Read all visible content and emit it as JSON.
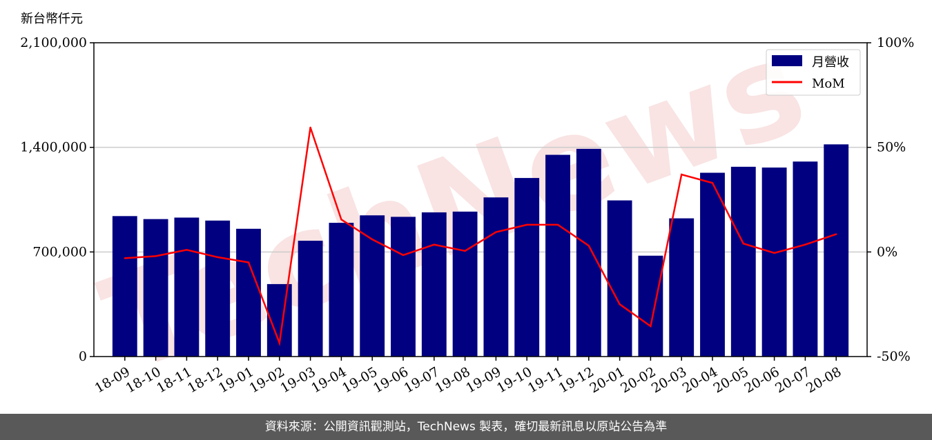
{
  "chart_data": {
    "type": "bar",
    "unit_label": "新台幣仟元",
    "categories": [
      "18-09",
      "18-10",
      "18-11",
      "18-12",
      "19-01",
      "19-02",
      "19-03",
      "19-04",
      "19-05",
      "19-06",
      "19-07",
      "19-08",
      "19-09",
      "19-10",
      "19-11",
      "19-12",
      "20-01",
      "20-02",
      "20-03",
      "20-04",
      "20-05",
      "20-06",
      "20-07",
      "20-08"
    ],
    "series": [
      {
        "name": "月營收",
        "axis": "left",
        "color": "#000080",
        "values": [
          940000,
          920000,
          930000,
          910000,
          855000,
          485000,
          775000,
          895000,
          945000,
          935000,
          965000,
          970000,
          1065000,
          1195000,
          1350000,
          1390000,
          1045000,
          675000,
          925000,
          1230000,
          1270000,
          1265000,
          1305000,
          1420000
        ]
      },
      {
        "name": "MoM",
        "axis": "right",
        "color": "#ff0000",
        "values": [
          -3,
          -2,
          1,
          -2.5,
          -5,
          -43.5,
          59.5,
          15.5,
          6,
          -1.5,
          3.5,
          0.5,
          9.5,
          13,
          13,
          3,
          -25,
          -35.5,
          37,
          33,
          4,
          -0.5,
          3.5,
          8.5
        ]
      }
    ],
    "y_left": {
      "min": 0,
      "max": 2100000,
      "ticks": [
        "0",
        "700,000",
        "1,400,000",
        "2,100,000"
      ],
      "tick_values": [
        0,
        700000,
        1400000,
        2100000
      ]
    },
    "y_right": {
      "min": -50,
      "max": 100,
      "ticks": [
        "-50%",
        "0%",
        "50%",
        "100%"
      ],
      "tick_values": [
        -50,
        0,
        50,
        100
      ]
    },
    "grid": "horizontal",
    "legend_placement": "top-right",
    "watermark": "TechNews"
  },
  "footer": {
    "text": "資料來源：公開資訊觀測站，TechNews 製表，確切最新訊息以原站公告為準"
  }
}
